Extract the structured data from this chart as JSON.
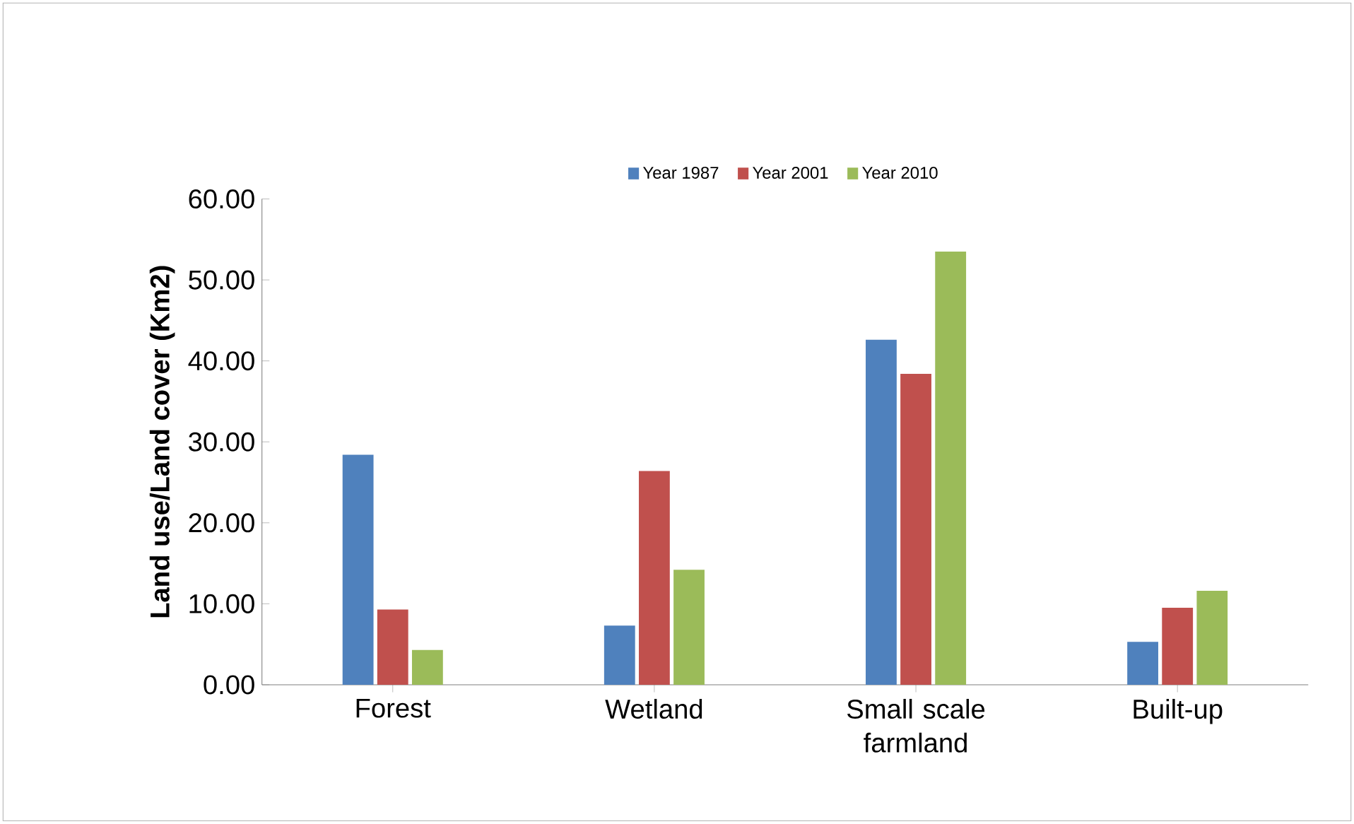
{
  "chart_data": {
    "type": "bar",
    "ylabel": "Land use/Land cover (Km2)",
    "categories": [
      "Forest",
      "Wetland",
      "Small scale farmland",
      "Built-up"
    ],
    "series": [
      {
        "name": "Year 1987",
        "color": "#4f81bd",
        "values": [
          28.4,
          7.3,
          42.6,
          5.3
        ]
      },
      {
        "name": "Year 2001",
        "color": "#c0504d",
        "values": [
          9.3,
          26.4,
          38.4,
          9.5
        ]
      },
      {
        "name": "Year 2010",
        "color": "#9bbb59",
        "values": [
          4.3,
          14.2,
          53.5,
          11.6
        ]
      }
    ],
    "ylim": [
      0,
      60
    ],
    "yticks": [
      {
        "value": 0,
        "label": "0.00"
      },
      {
        "value": 10,
        "label": "10.00"
      },
      {
        "value": 20,
        "label": "20.00"
      },
      {
        "value": 30,
        "label": "30.00"
      },
      {
        "value": 40,
        "label": "40.00"
      },
      {
        "value": 50,
        "label": "50.00"
      },
      {
        "value": 60,
        "label": "60.00"
      }
    ],
    "legend": "top"
  }
}
